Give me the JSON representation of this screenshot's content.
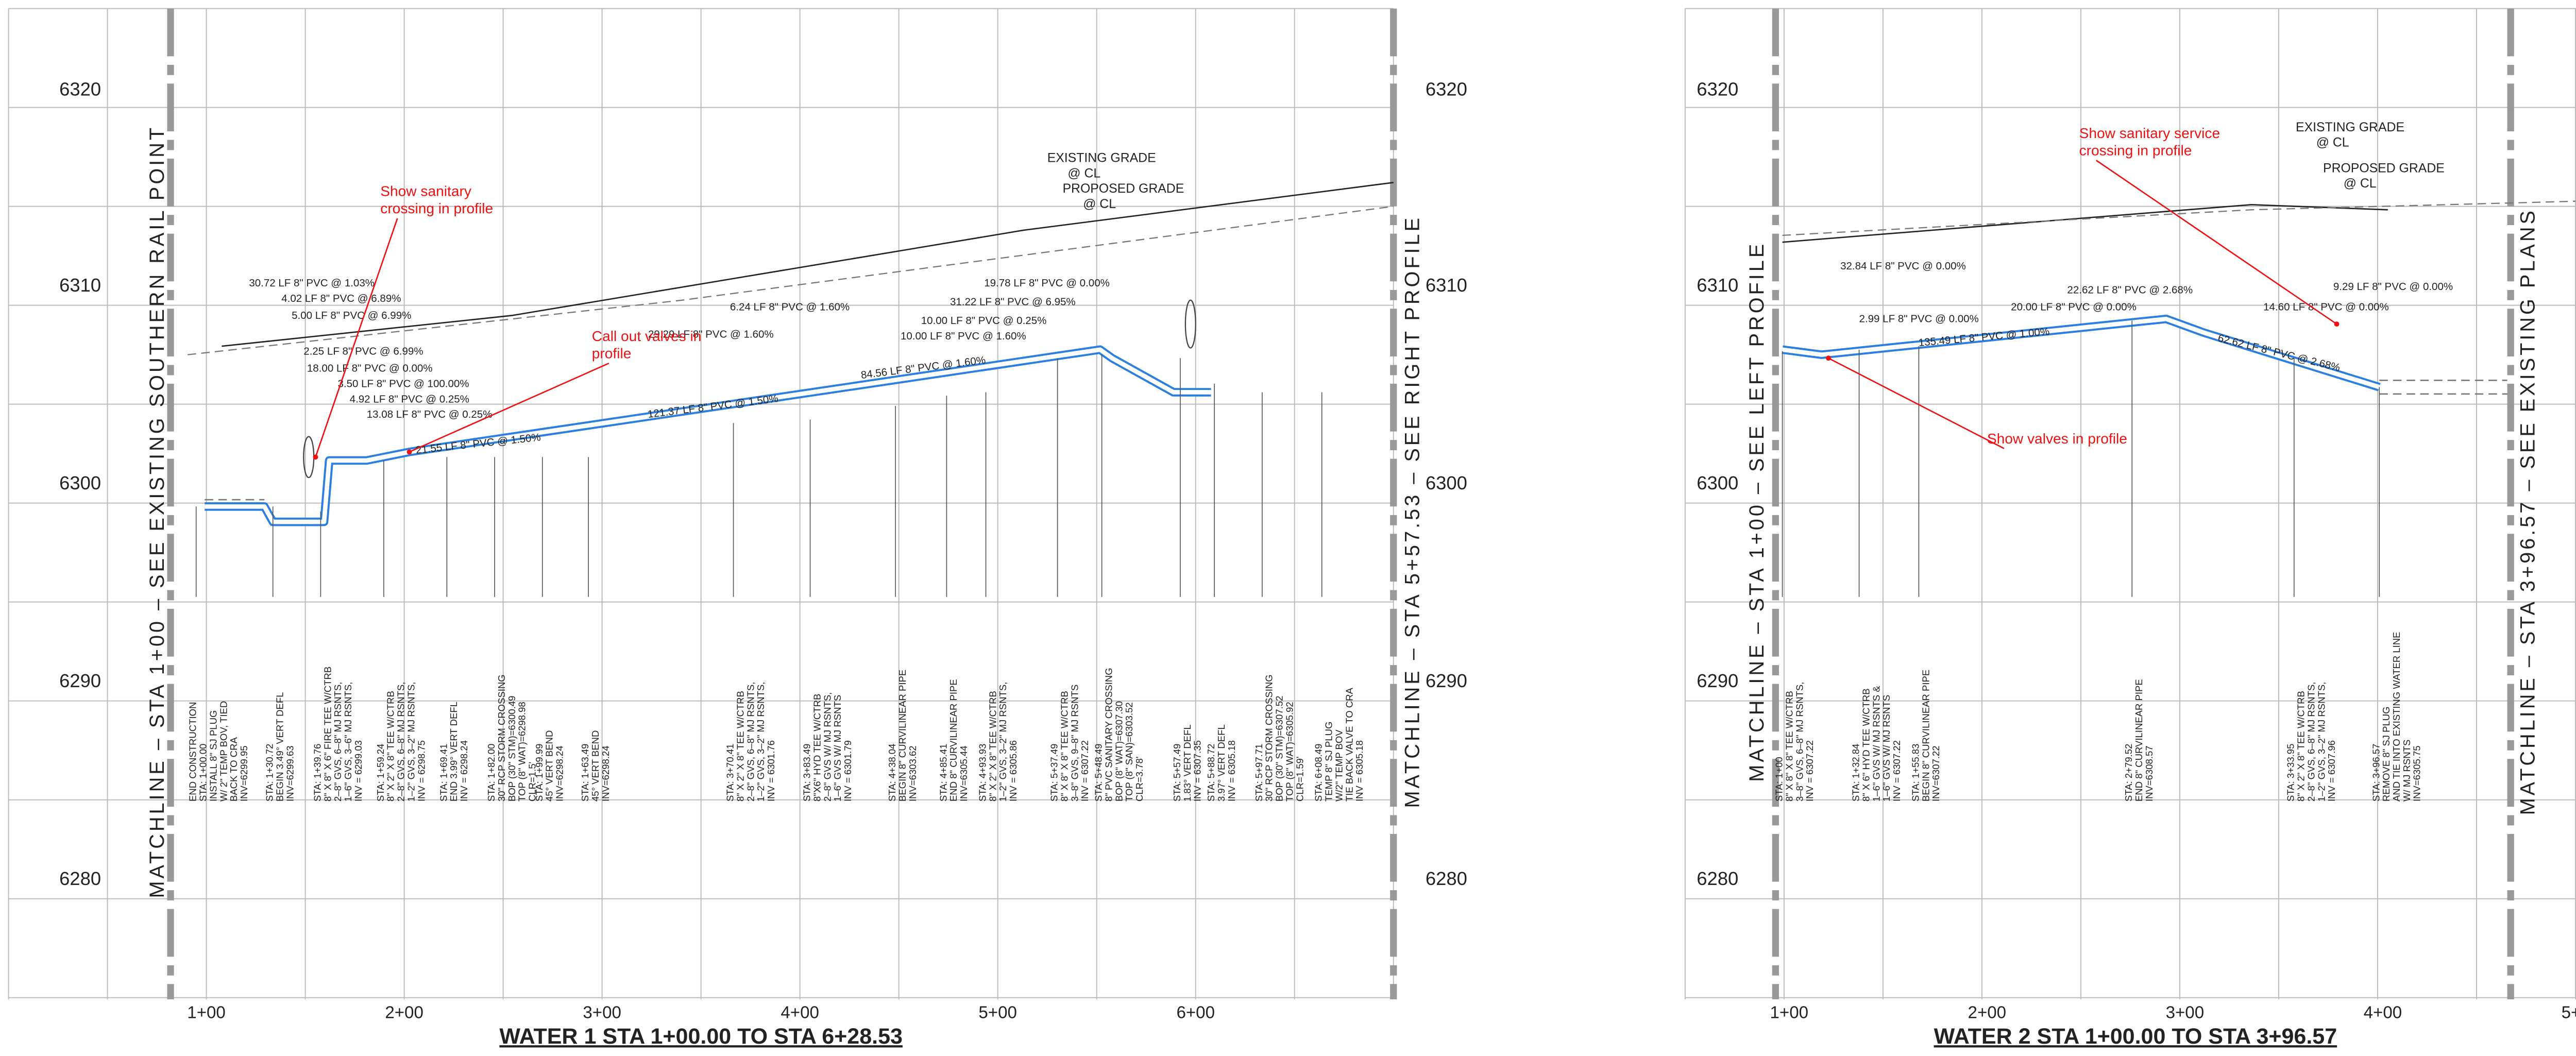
{
  "elevations": {
    "left": [
      "6320",
      "6310",
      "6300",
      "6290",
      "6280"
    ],
    "middle": [
      "6320",
      "6310",
      "6300",
      "6290",
      "6280"
    ],
    "right": [
      "6320",
      "6310",
      "6300",
      "6290",
      "6280"
    ],
    "far_right": [
      "6320",
      "6310",
      "6300",
      "6290",
      "6280"
    ]
  },
  "stations": {
    "left": [
      "1+00",
      "2+00",
      "3+00",
      "4+00",
      "5+00",
      "6+00"
    ],
    "right": [
      "1+00",
      "2+00",
      "3+00",
      "4+00",
      "5+00"
    ]
  },
  "matchlines": [
    "MATCHLINE – STA 1+00 – SEE EXISTING SOUTHERN RAIL POINT",
    "MATCHLINE – STA 5+57.53 – SEE RIGHT PROFILE",
    "MATCHLINE – STA 1+00 – SEE LEFT PROFILE",
    "MATCHLINE – STA 3+96.57 – SEE EXISTING PLANS"
  ],
  "titles": [
    "WATER 1 STA 1+00.00 TO STA 6+28.53",
    "WATER 2 STA 1+00.00 TO STA 3+96.57"
  ],
  "annotations": [
    [
      "Show sanitary",
      "crossing in profile"
    ],
    [
      "Call out valves in",
      "profile"
    ],
    [
      "Show sanitary service",
      "crossing in profile"
    ],
    [
      "Show valves in profile"
    ]
  ],
  "grade_labels": [
    [
      "EXISTING GRADE",
      "@ CL"
    ],
    [
      "PROPOSED GRADE",
      "@ CL"
    ],
    [
      "EXISTING GRADE",
      "@ CL"
    ],
    [
      "PROPOSED GRADE",
      "@ CL"
    ]
  ],
  "pipe_labels": [
    "30.72 LF 8\" PVC @ 1.03%",
    "4.02 LF 8\" PVC @ 6.89%",
    "5.00 LF 8\" PVC @ 6.99%",
    "2.25 LF 8\" PVC @ 6.99%",
    "18.00 LF 8\" PVC @ 0.00%",
    "3.50 LF 8\" PVC @ 100.00%",
    "4.92 LF 8\" PVC @ 0.25%",
    "13.08 LF 8\" PVC @ 0.25%",
    "21.55 LF 8\" PVC @ 1.50%",
    "121.37 LF 8\" PVC @ 1.50%",
    "84.56 LF 8\" PVC @ 1.60%",
    "6.24 LF 8\" PVC @ 1.60%",
    "29.29 LF 8\" PVC @ 1.60%",
    "10.00 LF 8\" PVC @ 0.25%",
    "10.00 LF 8\" PVC @ 1.60%",
    "31.22 LF 8\" PVC @ 6.95%",
    "19.78 LF 8\" PVC @ 0.00%",
    "32.84 LF 8\" PVC @ 0.00%",
    "2.99 LF 8\" PVC @ 0.00%",
    "22.62 LF 8\" PVC @ 2.68%",
    "20.00 LF 8\" PVC @ 0.00%",
    "135.49 LF 8\" PVC @ 1.00%",
    "62.62 LF 8\" PVC @ 2.68%",
    "9.29 LF 8\" PVC @ 0.00%",
    "14.60 LF 8\" PVC @ 0.00%"
  ],
  "callouts": [
    [
      "END CONSTRUCTION",
      "STA: 1+00.00",
      "INSTALL 8\" SJ PLUG",
      "W/ 2\" TEMP BOV, TIED",
      "BACK TO CRA",
      "INV=6299.95"
    ],
    [
      "STA: 1+30.72",
      "BEGIN 3.49° VERT DEFL",
      "INV=6299.63"
    ],
    [
      "STA: 1+39.76",
      "8\" X 8\" X 6\" FIRE TEE W/CTRB",
      "2–8\" GVS, 6–8\" MJ RSNTS,",
      "1–6\" GVS, 3–6\" MJ RSNTS,",
      "INV = 6299.03"
    ],
    [
      "STA: 1+59.24",
      "8\" X 2\" X 8\" TEE W/CTRB",
      "2–8\" GVS, 6–8\" MJ RSNTS,",
      "1–2\" GVS, 3–2\" MJ RSNTS,",
      "INV = 6298.75"
    ],
    [
      "STA: 1+69.41",
      "END 3.99° VERT DEFL",
      "INV = 6298.24"
    ],
    [
      "STA: 1+82.00",
      "30\" RCP STORM CROSSING",
      "BOP (30\" STM)=6300.49",
      "TOP (8\" WAT)=6298.98",
      "CLR=1.5'"
    ],
    [
      "STA: 1+99.99",
      "45° VERT BEND",
      "INV=6298.24"
    ],
    [
      "STA: 1+63.49",
      "45° VERT BEND",
      "INV=6298.24"
    ],
    [
      "STA: 3+70.41",
      "8\" X 2\" X 8\" TEE W/CTRB",
      "2–8\" GVS, 6–8\" MJ RSNTS,",
      "1–2\" GVS, 3–2\" MJ RSNTS,",
      "INV = 6301.76"
    ],
    [
      "STA: 3+83.49",
      "8\"X6\" HYD TEE W/CTRB",
      "2–8\" GVS W/ MJ RSNTS,",
      "1–6\" GVS W/ MJ RSNTS",
      "INV = 6301.79"
    ],
    [
      "STA: 4+38.04",
      "BEGIN 8\" CURVILINEAR PIPE",
      "INV=6303.62"
    ],
    [
      "STA: 4+85.41",
      "END 8\" CURVILINEAR PIPE",
      "INV=6305.44"
    ],
    [
      "STA: 4+93.93",
      "8\" X 2\" X 8\" TEE W/CTRB",
      "1–2\" GVS, 3–2\" MJ RSNTS,",
      "INV = 6305.86"
    ],
    [
      "STA: 5+37.49",
      "8\" X 8\" X 8\" TEE W/CTRB",
      "3–8\" GVS, 9–8\" MJ RSNTS",
      "INV = 6307.22"
    ],
    [
      "STA: 5+48.49",
      "8\" PVC SANITARY CROSSING",
      "BOP (8\" WAT)=6307.30",
      "TOP (8\" SAN)=6303.52",
      "CLR=3.78'"
    ],
    [
      "STA: 5+57.49",
      "1.83° VERT DEFL",
      "INV = 6307.35"
    ],
    [
      "STA: 5+88.72",
      "3.97° VERT DEFL",
      "INV = 6305.18"
    ],
    [
      "STA: 5+97.71",
      "30\" RCP STORM CROSSING",
      "BOP (30\" STM)=6307.52",
      "TOP (8\" WAT)=6305.92",
      "CLR=1.59'"
    ],
    [
      "STA: 6+08.49",
      "TEMP 8\" SJ PLUG",
      "W/2\" TEMP BOV",
      "TIE BACK VALVE TO CRA",
      "INV = 6305.18"
    ],
    [
      "STA: 1+00",
      "8\" X 8\" X 8\" TEE W/CTRB",
      "3–8\" GVS, 6–8\" MJ RSNTS,",
      "INV = 6307.22"
    ],
    [
      "STA: 1+32.84",
      "8\" X 6\" HYD TEE W/CTRB",
      "1–6\" GVS W/ MJ RSNTS &",
      "1–6\" GVS W/ MJ RSNTS",
      "INV = 6307.22"
    ],
    [
      "STA: 1+55.83",
      "BEGIN 8\" CURVILINEAR PIPE",
      "INV=6307.22"
    ],
    [
      "STA: 2+79.52",
      "END 8\" CURVILINEAR PIPE",
      "INV=6308.57"
    ],
    [
      "STA: 3+33.95",
      "8\" X 2\" X 8\" TEE W/CTRB",
      "2–8\" GVS, 6–8\" MJ RSNTS,",
      "1–2\" GVS, 3–2\" MJ RSNTS,",
      "INV = 6307.96"
    ],
    [
      "STA: 3+96.57",
      "REMOVE 8\" SJ PLUG",
      "AND TIE INTO EXISTING WATER LINE",
      "W/ MJ RSNTS",
      "INV=6305.75"
    ]
  ]
}
